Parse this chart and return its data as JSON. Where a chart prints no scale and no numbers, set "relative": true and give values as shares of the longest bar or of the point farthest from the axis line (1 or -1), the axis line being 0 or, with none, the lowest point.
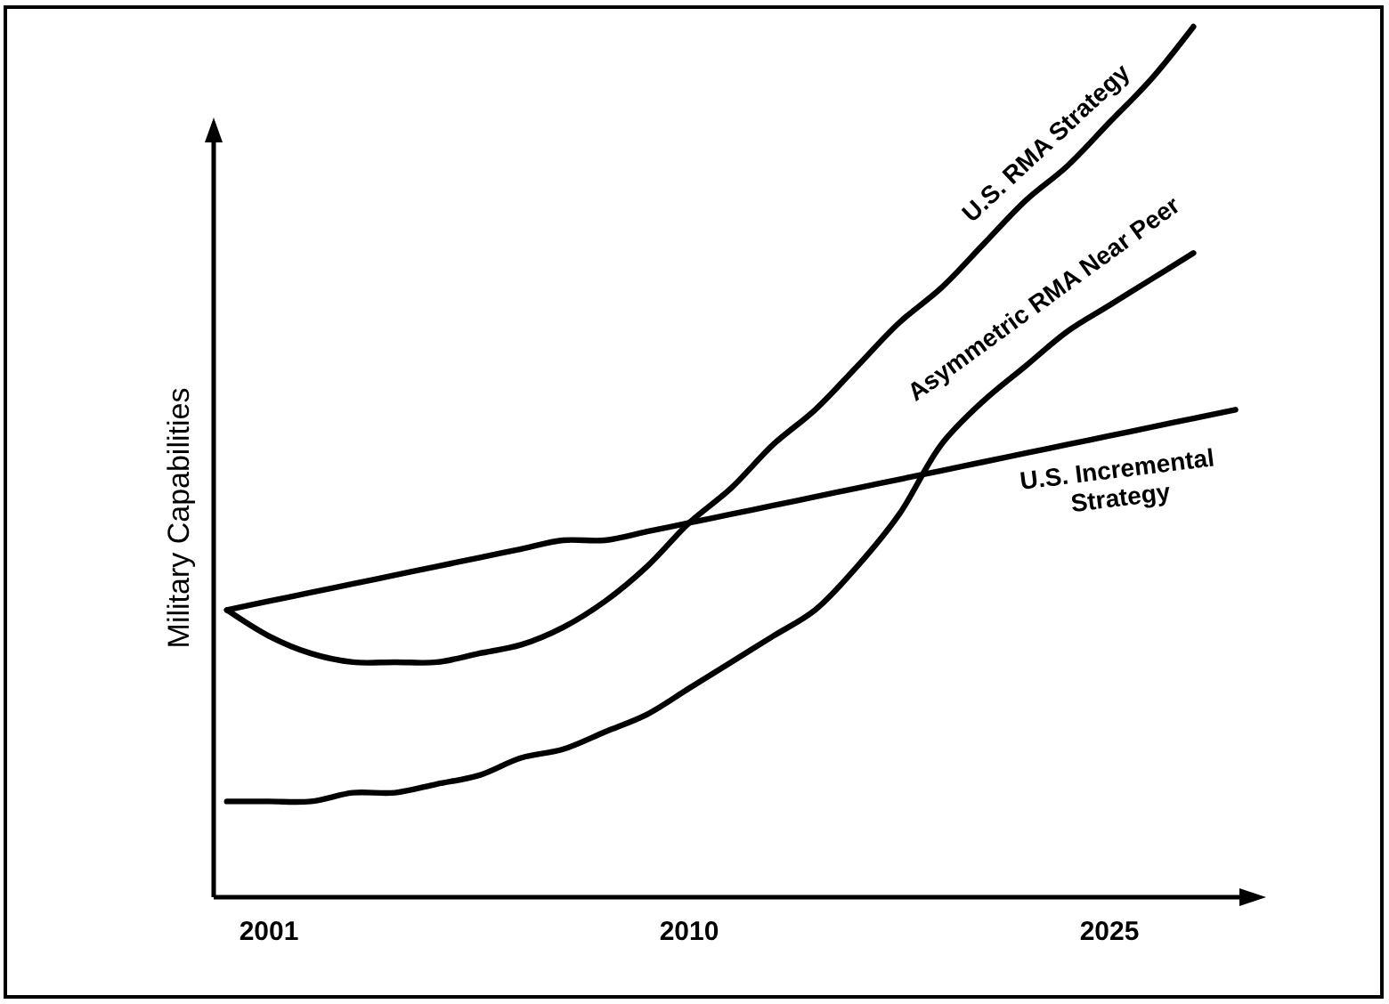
{
  "chart_data": {
    "type": "line",
    "relative": true,
    "ylabel": "Military Capabilities",
    "legend": false,
    "line_style": "solid",
    "categories": [
      null,
      "2001",
      null,
      null,
      null,
      null,
      null,
      null,
      null,
      null,
      null,
      "2010",
      null,
      null,
      null,
      null,
      null,
      null,
      null,
      null,
      null,
      "2025",
      null,
      null,
      null
    ],
    "series": [
      {
        "name": "U.S. RMA Strategy",
        "color": "#000000",
        "values": [
          0.33,
          0.3,
          0.28,
          0.27,
          0.27,
          0.27,
          0.28,
          0.29,
          0.31,
          0.34,
          0.38,
          0.43,
          0.47,
          0.52,
          0.56,
          0.61,
          0.66,
          0.7,
          0.75,
          0.8,
          0.84,
          0.89,
          0.94,
          1.0,
          null
        ]
      },
      {
        "name": "Asymmetric RMA Near Peer",
        "color": "#000000",
        "values": [
          0.11,
          0.11,
          0.11,
          0.12,
          0.12,
          0.13,
          0.14,
          0.16,
          0.17,
          0.19,
          0.21,
          0.24,
          0.27,
          0.3,
          0.33,
          0.38,
          0.44,
          0.52,
          0.57,
          0.61,
          0.65,
          0.68,
          0.71,
          0.74,
          null
        ]
      },
      {
        "name": "U.S. Incremental Strategy",
        "color": "#000000",
        "values": [
          0.33,
          0.34,
          0.35,
          0.36,
          0.37,
          0.38,
          0.39,
          0.4,
          0.41,
          0.41,
          0.42,
          0.43,
          0.44,
          0.45,
          0.46,
          0.47,
          0.48,
          0.49,
          0.5,
          0.51,
          0.52,
          0.53,
          0.54,
          0.55,
          0.56
        ]
      }
    ]
  }
}
